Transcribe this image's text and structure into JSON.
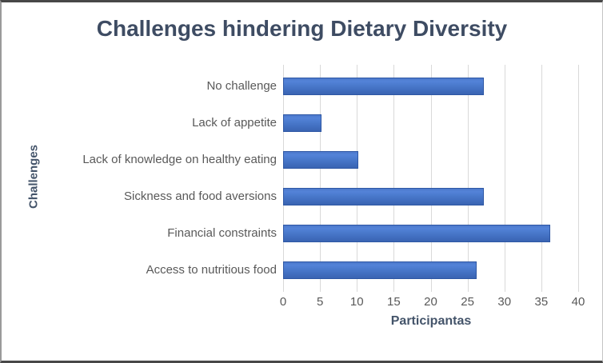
{
  "chart_data": {
    "type": "bar",
    "orientation": "horizontal",
    "title": "Challenges hindering Dietary Diversity",
    "xlabel": "Participantas",
    "ylabel": "Challenges",
    "categories": [
      "No challenge",
      "Lack of appetite",
      "Lack of knowledge on healthy eating",
      "Sickness and food aversions",
      "Financial constraints",
      "Access to nutritious food"
    ],
    "values": [
      27,
      5,
      10,
      27,
      36,
      26
    ],
    "xlim": [
      0,
      40
    ],
    "xticks": [
      0,
      5,
      10,
      15,
      20,
      25,
      30,
      35,
      40
    ],
    "grid": true,
    "legend": false,
    "colors": {
      "bar": "#4472C4",
      "bar_edge": "#2E57A4",
      "gridline": "#D9D9D9",
      "title": "#3E4C63",
      "axis_title": "#44546A",
      "tick_label": "#595959",
      "background": "#FFFFFF"
    }
  }
}
